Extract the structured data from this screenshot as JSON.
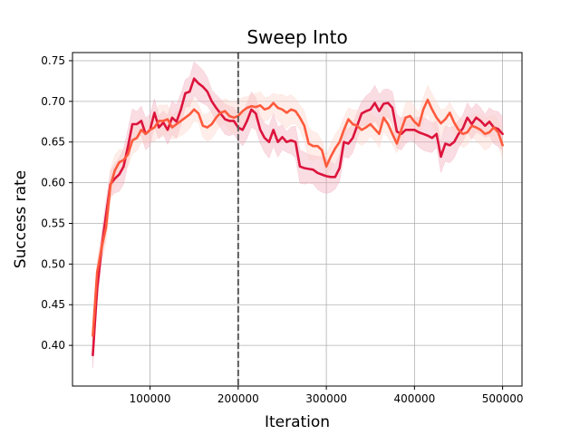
{
  "chart_data": {
    "type": "line",
    "title": "Sweep Into",
    "xlabel": "Iteration",
    "ylabel": "Success rate",
    "xlim": [
      12000,
      522000
    ],
    "ylim": [
      0.35,
      0.76
    ],
    "xticks": [
      100000,
      200000,
      300000,
      400000,
      500000
    ],
    "yticks": [
      0.4,
      0.45,
      0.5,
      0.55,
      0.6,
      0.65,
      0.7,
      0.75
    ],
    "grid": true,
    "vline": {
      "x": 200000,
      "color": "#5a5a5a",
      "style": "dashed"
    },
    "series": [
      {
        "color": "#dc143c",
        "band_color": "#f2a7b8",
        "x": [
          35000,
          40000,
          45000,
          50000,
          55000,
          60000,
          65000,
          70000,
          75000,
          80000,
          85000,
          90000,
          95000,
          100000,
          105000,
          110000,
          115000,
          120000,
          125000,
          130000,
          135000,
          140000,
          145000,
          150000,
          155000,
          160000,
          165000,
          170000,
          175000,
          180000,
          185000,
          190000,
          195000,
          200000,
          205000,
          210000,
          215000,
          220000,
          225000,
          230000,
          235000,
          240000,
          245000,
          250000,
          255000,
          260000,
          265000,
          270000,
          275000,
          280000,
          285000,
          290000,
          295000,
          300000,
          305000,
          310000,
          315000,
          320000,
          325000,
          330000,
          335000,
          340000,
          345000,
          350000,
          355000,
          360000,
          365000,
          370000,
          375000,
          380000,
          385000,
          390000,
          395000,
          400000,
          405000,
          410000,
          415000,
          420000,
          425000,
          430000,
          435000,
          440000,
          445000,
          450000,
          455000,
          460000,
          465000,
          470000,
          475000,
          480000,
          485000,
          490000,
          495000,
          500000
        ],
        "y": [
          0.388,
          0.47,
          0.52,
          0.56,
          0.598,
          0.605,
          0.61,
          0.62,
          0.645,
          0.672,
          0.672,
          0.676,
          0.66,
          0.665,
          0.686,
          0.668,
          0.674,
          0.665,
          0.68,
          0.675,
          0.69,
          0.71,
          0.712,
          0.728,
          0.722,
          0.718,
          0.712,
          0.7,
          0.692,
          0.685,
          0.678,
          0.676,
          0.676,
          0.668,
          0.665,
          0.676,
          0.69,
          0.685,
          0.665,
          0.655,
          0.65,
          0.665,
          0.65,
          0.656,
          0.65,
          0.652,
          0.65,
          0.62,
          0.618,
          0.617,
          0.616,
          0.612,
          0.61,
          0.608,
          0.607,
          0.607,
          0.618,
          0.65,
          0.648,
          0.655,
          0.67,
          0.685,
          0.688,
          0.69,
          0.698,
          0.688,
          0.697,
          0.698,
          0.692,
          0.663,
          0.66,
          0.665,
          0.665,
          0.665,
          0.662,
          0.66,
          0.658,
          0.655,
          0.66,
          0.632,
          0.648,
          0.646,
          0.65,
          0.66,
          0.667,
          0.68,
          0.672,
          0.68,
          0.676,
          0.67,
          0.675,
          0.668,
          0.666,
          0.66
        ]
      },
      {
        "color": "#ff5a3c",
        "band_color": "#fcd3c8",
        "x": [
          35000,
          40000,
          45000,
          50000,
          55000,
          60000,
          65000,
          70000,
          75000,
          80000,
          85000,
          90000,
          95000,
          100000,
          105000,
          110000,
          115000,
          120000,
          125000,
          130000,
          135000,
          140000,
          145000,
          150000,
          155000,
          160000,
          165000,
          170000,
          175000,
          180000,
          185000,
          190000,
          195000,
          200000,
          205000,
          210000,
          215000,
          220000,
          225000,
          230000,
          235000,
          240000,
          245000,
          250000,
          255000,
          260000,
          265000,
          270000,
          275000,
          280000,
          285000,
          290000,
          295000,
          300000,
          305000,
          310000,
          315000,
          320000,
          325000,
          330000,
          335000,
          340000,
          345000,
          350000,
          355000,
          360000,
          365000,
          370000,
          375000,
          380000,
          385000,
          390000,
          395000,
          400000,
          405000,
          410000,
          415000,
          420000,
          425000,
          430000,
          435000,
          440000,
          445000,
          450000,
          455000,
          460000,
          465000,
          470000,
          475000,
          480000,
          485000,
          490000,
          495000,
          500000
        ],
        "y": [
          0.412,
          0.49,
          0.52,
          0.545,
          0.596,
          0.615,
          0.625,
          0.628,
          0.635,
          0.652,
          0.655,
          0.665,
          0.66,
          0.665,
          0.668,
          0.676,
          0.676,
          0.678,
          0.668,
          0.672,
          0.676,
          0.68,
          0.684,
          0.69,
          0.685,
          0.67,
          0.668,
          0.672,
          0.68,
          0.686,
          0.688,
          0.682,
          0.68,
          0.682,
          0.688,
          0.692,
          0.694,
          0.693,
          0.695,
          0.69,
          0.692,
          0.698,
          0.692,
          0.69,
          0.686,
          0.69,
          0.688,
          0.68,
          0.67,
          0.648,
          0.645,
          0.645,
          0.64,
          0.62,
          0.632,
          0.642,
          0.65,
          0.665,
          0.678,
          0.672,
          0.67,
          0.665,
          0.668,
          0.672,
          0.666,
          0.66,
          0.68,
          0.672,
          0.66,
          0.648,
          0.665,
          0.68,
          0.682,
          0.675,
          0.67,
          0.69,
          0.702,
          0.69,
          0.68,
          0.673,
          0.678,
          0.686,
          0.674,
          0.665,
          0.66,
          0.662,
          0.67,
          0.668,
          0.665,
          0.66,
          0.662,
          0.668,
          0.662,
          0.646
        ]
      }
    ]
  }
}
